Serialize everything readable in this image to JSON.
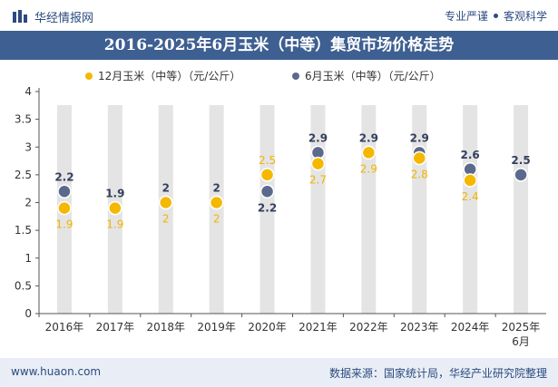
{
  "header": {
    "brand": "华经情报网",
    "tagline_left": "专业严谨",
    "tagline_right": "客观科学",
    "logo_icon": "bar-logo-icon"
  },
  "chart_data": {
    "type": "scatter",
    "title": "2016-2025年6月玉米（中等）集贸市场价格走势",
    "categories": [
      "2016年",
      "2017年",
      "2018年",
      "2019年",
      "2020年",
      "2021年",
      "2022年",
      "2023年",
      "2024年",
      "2025年"
    ],
    "category_sub": [
      "",
      "",
      "",
      "",
      "",
      "",
      "",
      "",
      "",
      "6月"
    ],
    "yticks": [
      "0",
      "0.5",
      "1",
      "1.5",
      "2",
      "2.5",
      "3",
      "3.5",
      "4"
    ],
    "ylim": [
      0,
      4
    ],
    "legend_position": "top",
    "series": [
      {
        "name": "12月玉米（中等）（元/公斤）",
        "color": "#f5b800",
        "label_color": "#f0b400",
        "values": [
          1.9,
          1.9,
          2,
          2,
          2.5,
          2.7,
          2.9,
          2.8,
          2.4,
          null
        ],
        "labels": [
          "1.9",
          "1.9",
          "2",
          "2",
          "2.5",
          "2.7",
          "2.9",
          "2.8",
          "2.4",
          ""
        ]
      },
      {
        "name": "6月玉米（中等）（元/公斤）",
        "color": "#5b6a8c",
        "label_color": "#33405e",
        "values": [
          2.2,
          1.9,
          2,
          2,
          2.2,
          2.9,
          2.9,
          2.9,
          2.6,
          2.5
        ],
        "labels": [
          "2.2",
          "1.9",
          "2",
          "2",
          "2.2",
          "2.9",
          "2.9",
          "2.9",
          "2.6",
          "2.5"
        ]
      }
    ]
  },
  "footer": {
    "site": "www.huaon.com",
    "source": "数据来源：国家统计局，华经产业研究院整理"
  }
}
